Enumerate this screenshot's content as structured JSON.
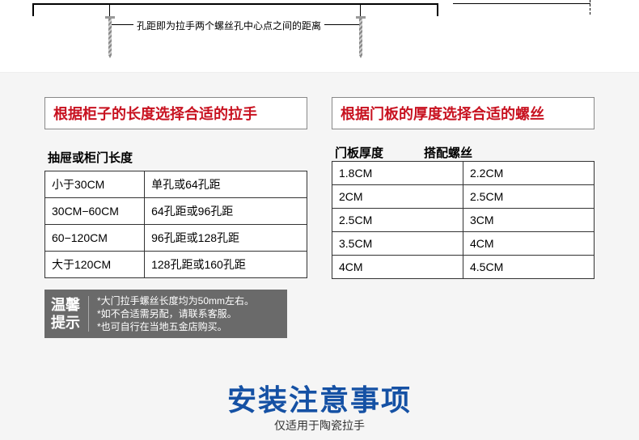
{
  "diagram": {
    "label": "孔距即为拉手两个螺丝孔中心点之间的距离"
  },
  "left": {
    "title": "根据柜子的长度选择合适的拉手",
    "header": "抽屉或柜门长度",
    "rows": [
      [
        "小于30CM",
        "单孔或64孔距"
      ],
      [
        "30CM−60CM",
        "64孔距或96孔距"
      ],
      [
        "60−120CM",
        "96孔距或128孔距"
      ],
      [
        "大于120CM",
        "128孔距或160孔距"
      ]
    ]
  },
  "right": {
    "title": "根据门板的厚度选择合适的螺丝",
    "header1": "门板厚度",
    "header2": "搭配螺丝",
    "rows": [
      [
        "1.8CM",
        "2.2CM"
      ],
      [
        "2CM",
        "2.5CM"
      ],
      [
        "2.5CM",
        "3CM"
      ],
      [
        "3.5CM",
        "4CM"
      ],
      [
        "4CM",
        "4.5CM"
      ]
    ]
  },
  "tip": {
    "label1": "温馨",
    "label2": "提示",
    "lines": [
      "*大门拉手螺丝长度均为50mm左右。",
      "*如不合适需另配，请联系客服。",
      "*也可自行在当地五金店购买。"
    ]
  },
  "footer": {
    "big": "安装注意事项",
    "small": "仅适用于陶瓷拉手"
  }
}
